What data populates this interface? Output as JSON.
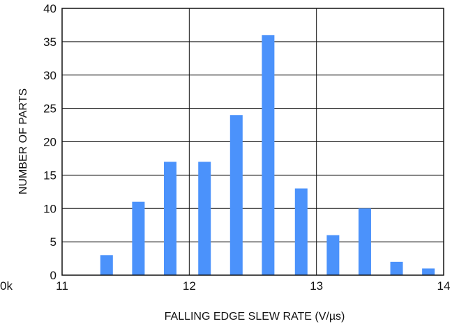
{
  "chart_data": {
    "type": "bar",
    "title": "",
    "xlabel": "FALLING EDGE SLEW RATE (V/µs)",
    "ylabel": "NUMBER OF PARTS",
    "xlim": [
      11,
      14
    ],
    "ylim": [
      0,
      40
    ],
    "x_ticks": [
      11,
      12,
      13,
      14
    ],
    "x_tick_labels": [
      "11",
      "12",
      "13",
      "14"
    ],
    "y_ticks": [
      0,
      5,
      10,
      15,
      20,
      25,
      30,
      35,
      40
    ],
    "y_tick_labels": [
      "0",
      "5",
      "10",
      "15",
      "20",
      "25",
      "30",
      "35",
      "40"
    ],
    "partial_label": "0k",
    "grid": true,
    "bar_color": "#4b92fb",
    "series": [
      {
        "x": [
          11.35,
          11.6,
          11.85,
          12.12,
          12.37,
          12.62,
          12.88,
          13.13,
          13.38,
          13.63,
          13.88
        ],
        "values": [
          3,
          11,
          17,
          17,
          24,
          36,
          13,
          6,
          10,
          2,
          1
        ]
      }
    ]
  }
}
